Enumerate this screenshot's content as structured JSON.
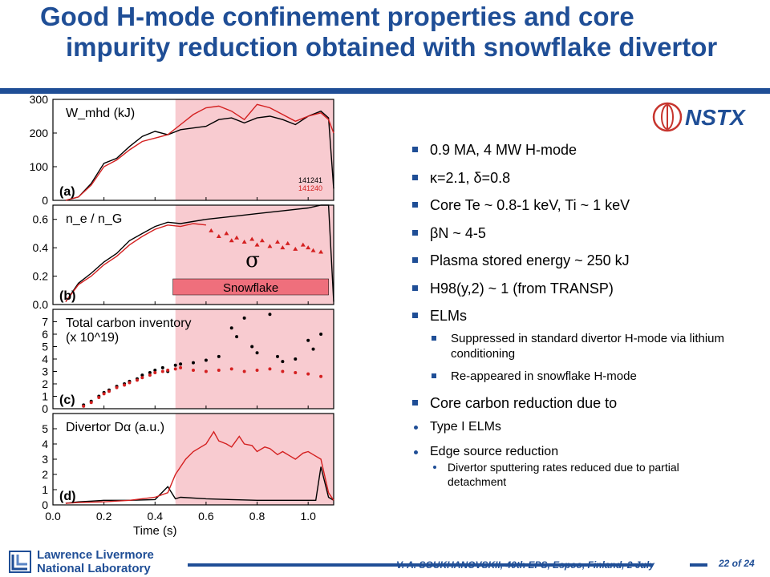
{
  "slide": {
    "title_line1": "Good H-mode confinement properties and core",
    "title_line2": "impurity reduction obtained with snowflake divertor",
    "logo_text": "NSTX",
    "footer": "V. A. SOUKHANOVSKII, 40th EPS, Espoo, Finland, 2 July",
    "page": "22 of 24",
    "lab_line1": "Lawrence Livermore",
    "lab_line2": "National Laboratory"
  },
  "bullets": {
    "b1": "0.9 MA, 4 MW H-mode",
    "b2": "κ=2.1, δ=0.8",
    "b3": "Core Te ~ 0.8-1 keV, Ti ~ 1 keV",
    "b4": "βN ~ 4-5",
    "b5": "Plasma stored energy ~ 250 kJ",
    "b6": "H98(y,2) ~ 1 (from TRANSP)",
    "b7": "ELMs",
    "b7a": "Suppressed in standard divertor H-mode via lithium conditioning",
    "b7b": "Re-appeared in snowflake H-mode",
    "b8": "Core carbon reduction due to",
    "b8a": "Type I ELMs",
    "b8b": "Edge source reduction",
    "b8b1": "Divertor sputtering rates reduced due to partial detachment"
  },
  "colors": {
    "accent": "#1f4e96",
    "red": "#d42020",
    "black": "#000000",
    "shade": "#f8cbd0",
    "snow_bar": "#ef6f7c"
  },
  "chart_data": {
    "type": "line",
    "xlabel": "Time (s)",
    "xlim": [
      0.0,
      1.1
    ],
    "xticks": [
      "0.0",
      "0.2",
      "0.4",
      "0.6",
      "0.8",
      "1.0"
    ],
    "shade": {
      "from": 0.48,
      "to": 1.1
    },
    "snowflake_label": "Snowflake",
    "sigma_label": "σ",
    "shots": [
      "141241",
      "141240"
    ],
    "panels": [
      {
        "panel": "(a)",
        "label": "W_mhd (kJ)",
        "ylim": [
          0,
          300
        ],
        "yticks": [
          "300",
          "200",
          "100",
          "0"
        ],
        "yvals": [
          300,
          200,
          100,
          0
        ],
        "series": [
          {
            "name": "141241",
            "color": "black",
            "style": "line",
            "x": [
              0.05,
              0.1,
              0.15,
              0.2,
              0.25,
              0.3,
              0.35,
              0.4,
              0.45,
              0.5,
              0.55,
              0.6,
              0.65,
              0.7,
              0.75,
              0.8,
              0.85,
              0.9,
              0.95,
              1.0,
              1.05,
              1.08,
              1.1
            ],
            "y": [
              0,
              10,
              50,
              110,
              125,
              160,
              190,
              205,
              195,
              210,
              215,
              220,
              240,
              245,
              230,
              245,
              250,
              240,
              225,
              250,
              265,
              245,
              35
            ]
          },
          {
            "name": "141240",
            "color": "red",
            "style": "line",
            "x": [
              0.05,
              0.1,
              0.15,
              0.2,
              0.25,
              0.3,
              0.35,
              0.4,
              0.45,
              0.5,
              0.55,
              0.6,
              0.65,
              0.7,
              0.75,
              0.8,
              0.85,
              0.9,
              0.95,
              1.0,
              1.05,
              1.08,
              1.1
            ],
            "y": [
              0,
              10,
              45,
              100,
              120,
              150,
              175,
              185,
              195,
              225,
              255,
              275,
              280,
              265,
              240,
              285,
              275,
              255,
              235,
              250,
              260,
              240,
              200
            ]
          }
        ]
      },
      {
        "panel": "(b)",
        "label": "n_e / n_G",
        "ylim": [
          0,
          0.7
        ],
        "yticks": [
          "0.6",
          "0.4",
          "0.2",
          "0.0"
        ],
        "yvals": [
          0.6,
          0.4,
          0.2,
          0.0
        ],
        "series": [
          {
            "name": "141241",
            "color": "black",
            "style": "line",
            "x": [
              0.05,
              0.1,
              0.15,
              0.2,
              0.25,
              0.3,
              0.35,
              0.4,
              0.45,
              0.5,
              0.6,
              0.7,
              0.8,
              0.9,
              1.0,
              1.05,
              1.08,
              1.1
            ],
            "y": [
              0.02,
              0.15,
              0.22,
              0.3,
              0.36,
              0.45,
              0.5,
              0.55,
              0.58,
              0.57,
              0.6,
              0.62,
              0.64,
              0.66,
              0.68,
              0.7,
              0.7,
              0.02
            ]
          },
          {
            "name": "141240",
            "color": "red",
            "style": "line",
            "x": [
              0.05,
              0.1,
              0.15,
              0.2,
              0.25,
              0.3,
              0.35,
              0.4,
              0.45,
              0.5,
              0.55,
              0.6
            ],
            "y": [
              0.02,
              0.14,
              0.2,
              0.28,
              0.34,
              0.42,
              0.48,
              0.53,
              0.56,
              0.55,
              0.57,
              0.56
            ]
          },
          {
            "name": "141240",
            "color": "red",
            "style": "tri",
            "x": [
              0.62,
              0.65,
              0.68,
              0.7,
              0.72,
              0.75,
              0.78,
              0.8,
              0.82,
              0.85,
              0.88,
              0.9,
              0.92,
              0.95,
              0.98,
              1.0,
              1.02,
              1.05
            ],
            "y": [
              0.52,
              0.48,
              0.5,
              0.45,
              0.47,
              0.44,
              0.46,
              0.42,
              0.45,
              0.41,
              0.44,
              0.4,
              0.43,
              0.39,
              0.42,
              0.4,
              0.38,
              0.37
            ]
          }
        ]
      },
      {
        "panel": "(c)",
        "label": "Total carbon inventory",
        "label2": "(x 10^19)",
        "ylim": [
          0,
          8
        ],
        "yticks": [
          "7",
          "6",
          "5",
          "4",
          "3",
          "2",
          "1",
          "0"
        ],
        "yvals": [
          7,
          6,
          5,
          4,
          3,
          2,
          1,
          0
        ],
        "series": [
          {
            "name": "141241",
            "color": "black",
            "style": "dot",
            "x": [
              0.12,
              0.15,
              0.18,
              0.2,
              0.22,
              0.25,
              0.28,
              0.3,
              0.33,
              0.35,
              0.38,
              0.4,
              0.43,
              0.45,
              0.48,
              0.5,
              0.55,
              0.6,
              0.65,
              0.7,
              0.72,
              0.75,
              0.78,
              0.8,
              0.85,
              0.88,
              0.9,
              0.95,
              1.0,
              1.02,
              1.05
            ],
            "y": [
              0.3,
              0.6,
              1.0,
              1.3,
              1.5,
              1.8,
              2.0,
              2.2,
              2.4,
              2.7,
              2.9,
              3.1,
              3.3,
              3.0,
              3.5,
              3.6,
              3.7,
              3.9,
              4.2,
              6.5,
              5.8,
              7.3,
              5.0,
              4.5,
              7.6,
              4.2,
              3.8,
              4.0,
              5.5,
              4.8,
              6.0
            ]
          },
          {
            "name": "141240",
            "color": "red",
            "style": "dot",
            "x": [
              0.12,
              0.15,
              0.18,
              0.2,
              0.22,
              0.25,
              0.28,
              0.3,
              0.33,
              0.35,
              0.38,
              0.4,
              0.43,
              0.45,
              0.48,
              0.5,
              0.55,
              0.6,
              0.65,
              0.7,
              0.75,
              0.8,
              0.85,
              0.9,
              0.95,
              1.0,
              1.05
            ],
            "y": [
              0.2,
              0.5,
              0.9,
              1.2,
              1.4,
              1.7,
              1.9,
              2.1,
              2.3,
              2.5,
              2.7,
              2.9,
              3.0,
              3.1,
              3.2,
              3.3,
              3.1,
              3.0,
              3.1,
              3.2,
              3.0,
              3.1,
              3.2,
              3.0,
              2.9,
              2.8,
              2.6
            ]
          }
        ]
      },
      {
        "panel": "(d)",
        "label": "Divertor Dα (a.u.)",
        "ylim": [
          0,
          6
        ],
        "yticks": [
          "5",
          "4",
          "3",
          "2",
          "1",
          "0"
        ],
        "yvals": [
          5,
          4,
          3,
          2,
          1,
          0
        ],
        "series": [
          {
            "name": "141241",
            "color": "black",
            "style": "line",
            "x": [
              0.05,
              0.1,
              0.15,
              0.2,
              0.3,
              0.4,
              0.45,
              0.48,
              0.5,
              0.6,
              0.7,
              0.8,
              0.9,
              1.0,
              1.03,
              1.05,
              1.08,
              1.1
            ],
            "y": [
              0.1,
              0.2,
              0.25,
              0.3,
              0.3,
              0.35,
              1.2,
              0.4,
              0.5,
              0.4,
              0.35,
              0.3,
              0.3,
              0.3,
              0.3,
              2.5,
              0.5,
              0.3
            ]
          },
          {
            "name": "141240",
            "color": "red",
            "style": "line",
            "x": [
              0.05,
              0.1,
              0.2,
              0.3,
              0.4,
              0.45,
              0.48,
              0.5,
              0.52,
              0.55,
              0.58,
              0.6,
              0.63,
              0.65,
              0.68,
              0.7,
              0.73,
              0.75,
              0.78,
              0.8,
              0.83,
              0.85,
              0.88,
              0.9,
              0.93,
              0.95,
              0.98,
              1.0,
              1.02,
              1.05,
              1.08,
              1.1
            ],
            "y": [
              0.1,
              0.15,
              0.2,
              0.3,
              0.5,
              0.8,
              2.0,
              2.5,
              3.0,
              3.5,
              3.8,
              4.0,
              4.8,
              4.2,
              4.0,
              3.8,
              4.5,
              4.0,
              3.9,
              3.5,
              3.8,
              3.7,
              3.3,
              3.5,
              3.2,
              3.0,
              3.4,
              3.5,
              3.3,
              3.0,
              0.8,
              0.3
            ]
          }
        ]
      }
    ]
  }
}
